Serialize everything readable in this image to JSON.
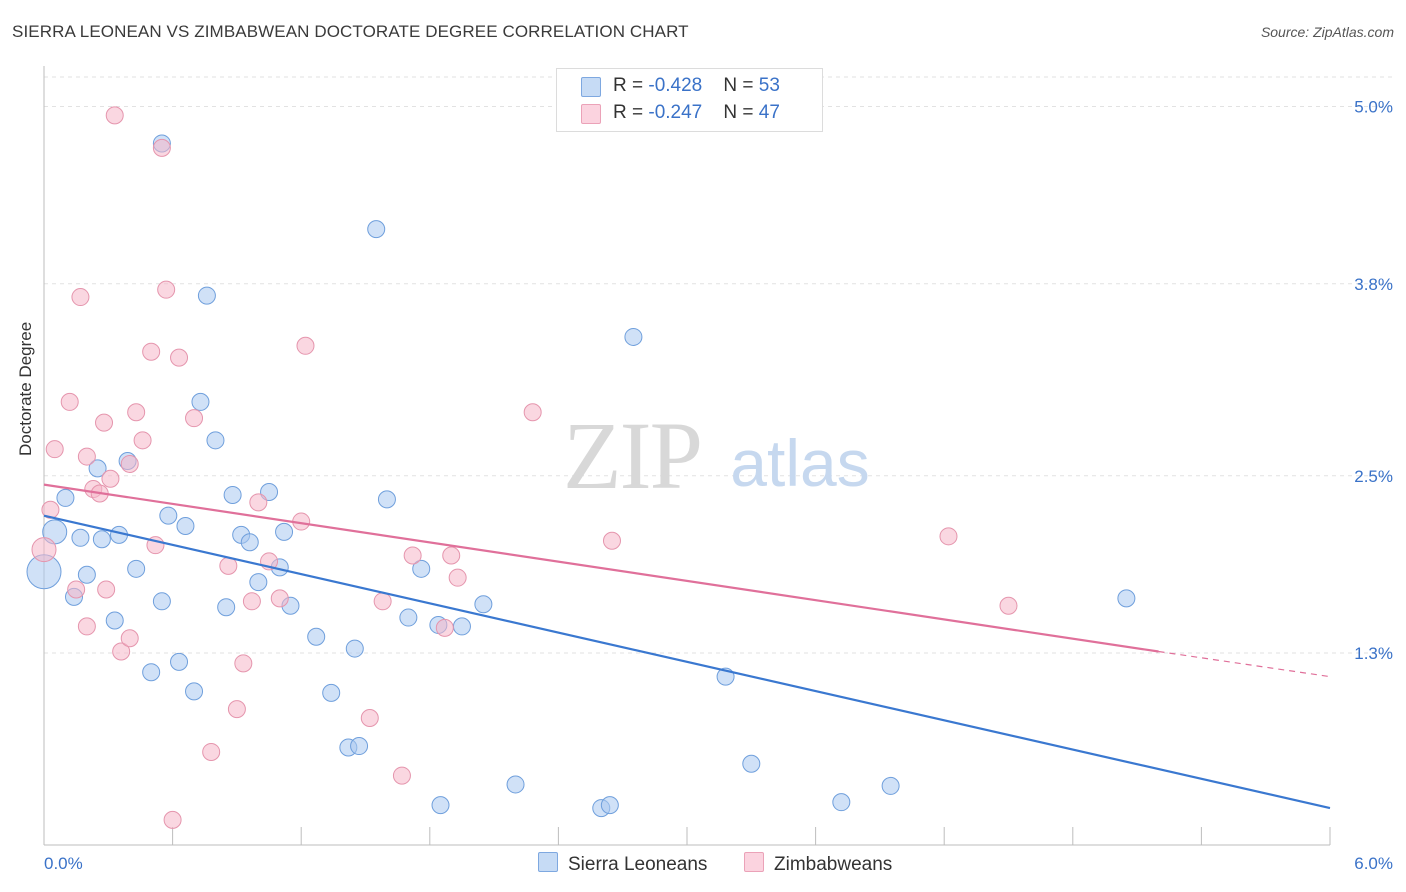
{
  "header": {
    "title": "SIERRA LEONEAN VS ZIMBABWEAN DOCTORATE DEGREE CORRELATION CHART",
    "source": "Source: ZipAtlas.com"
  },
  "watermark": {
    "zip": "ZIP",
    "atlas": "atlas"
  },
  "legend_top": {
    "rows": [
      {
        "r_label": "R = ",
        "r_value": "-0.428",
        "n_label": "N = ",
        "n_value": "53",
        "color": "#a9c8f0"
      },
      {
        "r_label": "R = ",
        "r_value": "-0.247",
        "n_label": "N = ",
        "n_value": "47",
        "color": "#f5b7c9"
      }
    ]
  },
  "legend_bottom": {
    "items": [
      {
        "label": "Sierra Leoneans",
        "color": "#a9c8f0"
      },
      {
        "label": "Zimbabweans",
        "color": "#f5b7c9"
      }
    ]
  },
  "chart_data": {
    "type": "scatter",
    "title": "SIERRA LEONEAN VS ZIMBABWEAN DOCTORATE DEGREE CORRELATION CHART",
    "xlabel": "",
    "ylabel": "Doctorate Degree",
    "xlim": [
      0,
      6.0
    ],
    "ylim": [
      0,
      5.2
    ],
    "x_tick_labels": [
      "0.0%",
      "6.0%"
    ],
    "y_ticks": [
      1.3,
      2.5,
      3.8,
      5.0
    ],
    "y_tick_labels": [
      "1.3%",
      "2.5%",
      "3.8%",
      "5.0%"
    ],
    "grid": true,
    "legend_position": "top-center",
    "series": [
      {
        "name": "Sierra Leoneans",
        "color": "#a9c8f0",
        "stroke": "#6f9fdc",
        "trend": {
          "x": [
            0.0,
            6.0
          ],
          "y": [
            2.23,
            0.25
          ],
          "color": "#3a78d0"
        },
        "points": [
          {
            "x": 0.05,
            "y": 2.12,
            "big": 1
          },
          {
            "x": 0.0,
            "y": 1.85,
            "big": 2
          },
          {
            "x": 0.1,
            "y": 2.35
          },
          {
            "x": 0.17,
            "y": 2.08
          },
          {
            "x": 0.2,
            "y": 1.83
          },
          {
            "x": 0.25,
            "y": 2.55
          },
          {
            "x": 0.27,
            "y": 2.07
          },
          {
            "x": 0.35,
            "y": 2.1
          },
          {
            "x": 0.39,
            "y": 2.6
          },
          {
            "x": 0.43,
            "y": 1.87
          },
          {
            "x": 0.55,
            "y": 4.75
          },
          {
            "x": 0.58,
            "y": 2.23
          },
          {
            "x": 0.66,
            "y": 2.16
          },
          {
            "x": 0.73,
            "y": 3.0
          },
          {
            "x": 0.76,
            "y": 3.72
          },
          {
            "x": 0.8,
            "y": 2.74
          },
          {
            "x": 0.88,
            "y": 2.37
          },
          {
            "x": 0.92,
            "y": 2.1
          },
          {
            "x": 0.96,
            "y": 2.05
          },
          {
            "x": 1.05,
            "y": 2.39
          },
          {
            "x": 1.12,
            "y": 2.12
          },
          {
            "x": 1.55,
            "y": 4.17
          },
          {
            "x": 1.6,
            "y": 2.34
          },
          {
            "x": 0.14,
            "y": 1.68
          },
          {
            "x": 0.33,
            "y": 1.52
          },
          {
            "x": 0.55,
            "y": 1.65
          },
          {
            "x": 0.63,
            "y": 1.24
          },
          {
            "x": 0.7,
            "y": 1.04
          },
          {
            "x": 0.5,
            "y": 1.17
          },
          {
            "x": 0.85,
            "y": 1.61
          },
          {
            "x": 1.0,
            "y": 1.78
          },
          {
            "x": 1.1,
            "y": 1.88
          },
          {
            "x": 1.15,
            "y": 1.62
          },
          {
            "x": 1.27,
            "y": 1.41
          },
          {
            "x": 1.34,
            "y": 1.03
          },
          {
            "x": 1.45,
            "y": 1.33
          },
          {
            "x": 1.42,
            "y": 0.66
          },
          {
            "x": 1.47,
            "y": 0.67
          },
          {
            "x": 1.7,
            "y": 1.54
          },
          {
            "x": 1.76,
            "y": 1.87
          },
          {
            "x": 1.85,
            "y": 0.27
          },
          {
            "x": 1.84,
            "y": 1.49
          },
          {
            "x": 1.95,
            "y": 1.48
          },
          {
            "x": 2.05,
            "y": 1.63
          },
          {
            "x": 2.2,
            "y": 0.41
          },
          {
            "x": 2.6,
            "y": 0.25
          },
          {
            "x": 2.64,
            "y": 0.27
          },
          {
            "x": 2.75,
            "y": 3.44
          },
          {
            "x": 3.18,
            "y": 1.14
          },
          {
            "x": 3.3,
            "y": 0.55
          },
          {
            "x": 3.72,
            "y": 0.29
          },
          {
            "x": 3.95,
            "y": 0.4
          },
          {
            "x": 5.05,
            "y": 1.67
          }
        ]
      },
      {
        "name": "Zimbabweans",
        "color": "#f5b7c9",
        "stroke": "#e595ad",
        "trend": {
          "x": [
            0.0,
            5.2
          ],
          "y": [
            2.44,
            1.31
          ],
          "color": "#e0709a"
        },
        "trend_dashed": {
          "x": [
            5.2,
            6.0
          ],
          "y": [
            1.31,
            1.14
          ]
        },
        "points": [
          {
            "x": 0.0,
            "y": 2.0,
            "big": 1
          },
          {
            "x": 0.03,
            "y": 2.27
          },
          {
            "x": 0.05,
            "y": 2.68
          },
          {
            "x": 0.12,
            "y": 3.0
          },
          {
            "x": 0.15,
            "y": 1.73
          },
          {
            "x": 0.17,
            "y": 3.71
          },
          {
            "x": 0.2,
            "y": 2.63
          },
          {
            "x": 0.23,
            "y": 2.41
          },
          {
            "x": 0.26,
            "y": 2.38
          },
          {
            "x": 0.28,
            "y": 2.86
          },
          {
            "x": 0.29,
            "y": 1.73
          },
          {
            "x": 0.31,
            "y": 2.48
          },
          {
            "x": 0.33,
            "y": 4.94
          },
          {
            "x": 0.36,
            "y": 1.31
          },
          {
            "x": 0.4,
            "y": 2.58
          },
          {
            "x": 0.43,
            "y": 2.93
          },
          {
            "x": 0.46,
            "y": 2.74
          },
          {
            "x": 0.5,
            "y": 3.34
          },
          {
            "x": 0.52,
            "y": 2.03
          },
          {
            "x": 0.55,
            "y": 4.72
          },
          {
            "x": 0.57,
            "y": 3.76
          },
          {
            "x": 0.63,
            "y": 3.3
          },
          {
            "x": 0.7,
            "y": 2.89
          },
          {
            "x": 0.78,
            "y": 0.63
          },
          {
            "x": 0.86,
            "y": 1.89
          },
          {
            "x": 0.9,
            "y": 0.92
          },
          {
            "x": 0.93,
            "y": 1.23
          },
          {
            "x": 0.97,
            "y": 1.65
          },
          {
            "x": 1.0,
            "y": 2.32
          },
          {
            "x": 1.05,
            "y": 1.92
          },
          {
            "x": 1.1,
            "y": 1.67
          },
          {
            "x": 1.2,
            "y": 2.19
          },
          {
            "x": 1.22,
            "y": 3.38
          },
          {
            "x": 1.58,
            "y": 1.65
          },
          {
            "x": 1.67,
            "y": 0.47
          },
          {
            "x": 1.72,
            "y": 1.96
          },
          {
            "x": 1.9,
            "y": 1.96
          },
          {
            "x": 1.93,
            "y": 1.81
          },
          {
            "x": 2.28,
            "y": 2.93
          },
          {
            "x": 0.2,
            "y": 1.48
          },
          {
            "x": 0.4,
            "y": 1.4
          },
          {
            "x": 0.6,
            "y": 0.17
          },
          {
            "x": 1.52,
            "y": 0.86
          },
          {
            "x": 1.87,
            "y": 1.47
          },
          {
            "x": 2.65,
            "y": 2.06
          },
          {
            "x": 4.22,
            "y": 2.09
          },
          {
            "x": 4.5,
            "y": 1.62
          }
        ]
      }
    ]
  }
}
